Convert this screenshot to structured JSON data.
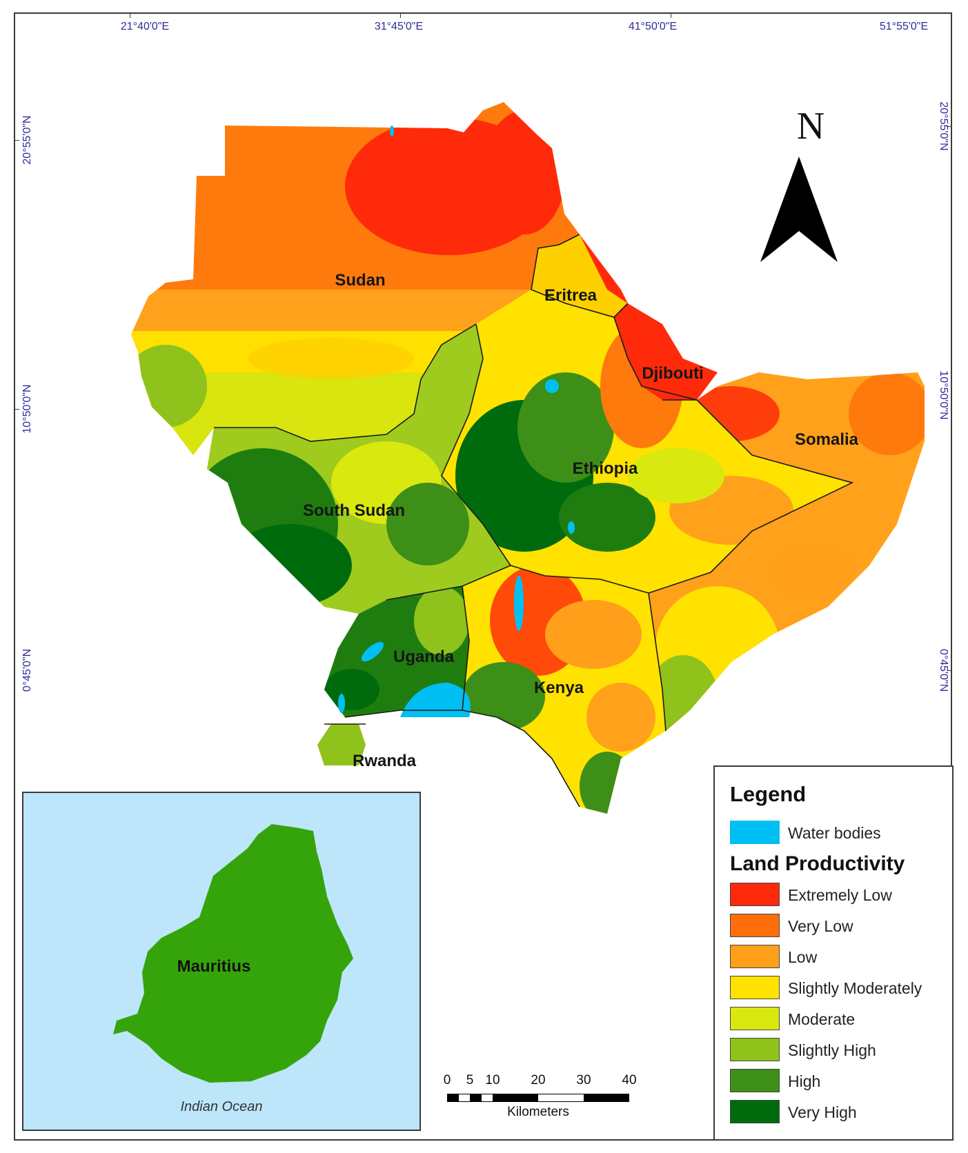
{
  "coordinates": {
    "top": [
      "21°40'0\"E",
      "31°45'0\"E",
      "41°50'0\"E",
      "51°55'0\"E"
    ],
    "left": [
      "20°55'0\"N",
      "10°50'0\"N",
      "0°45'0\"N"
    ],
    "right": [
      "20°55'0\"N",
      "10°50'0\"N",
      "0°45'0\"N"
    ]
  },
  "north_arrow": {
    "letter": "N"
  },
  "countries": {
    "sudan": "Sudan",
    "eritrea": "Eritrea",
    "djibouti": "Djibouti",
    "ethiopia": "Ethiopia",
    "somalia": "Somalia",
    "south_sudan": "South Sudan",
    "uganda": "Uganda",
    "kenya": "Kenya",
    "rwanda": "Rwanda"
  },
  "inset": {
    "island": "Mauritius",
    "ocean": "Indian Ocean"
  },
  "legend": {
    "title": "Legend",
    "water": {
      "label": "Water bodies",
      "color": "#00bff3"
    },
    "subtitle": "Land Productivity",
    "classes": [
      {
        "label": "Extremely Low",
        "color": "#ff2a0a"
      },
      {
        "label": "Very Low",
        "color": "#ff6e0a"
      },
      {
        "label": "Low",
        "color": "#ff9f1a"
      },
      {
        "label": "Slightly Moderately",
        "color": "#ffe200"
      },
      {
        "label": "Moderate",
        "color": "#d9e80f"
      },
      {
        "label": "Slightly High",
        "color": "#8fc21b"
      },
      {
        "label": "High",
        "color": "#3d8f17"
      },
      {
        "label": "Very High",
        "color": "#006b0d"
      }
    ]
  },
  "scale_bar": {
    "ticks": [
      "0",
      "5",
      "10",
      "20",
      "30",
      "40"
    ],
    "units": "Kilometers"
  },
  "colors": {
    "mauritius": "#35a40a",
    "inset_ocean": "#bde6fb",
    "coordinate_text": "#2b2b9a"
  }
}
